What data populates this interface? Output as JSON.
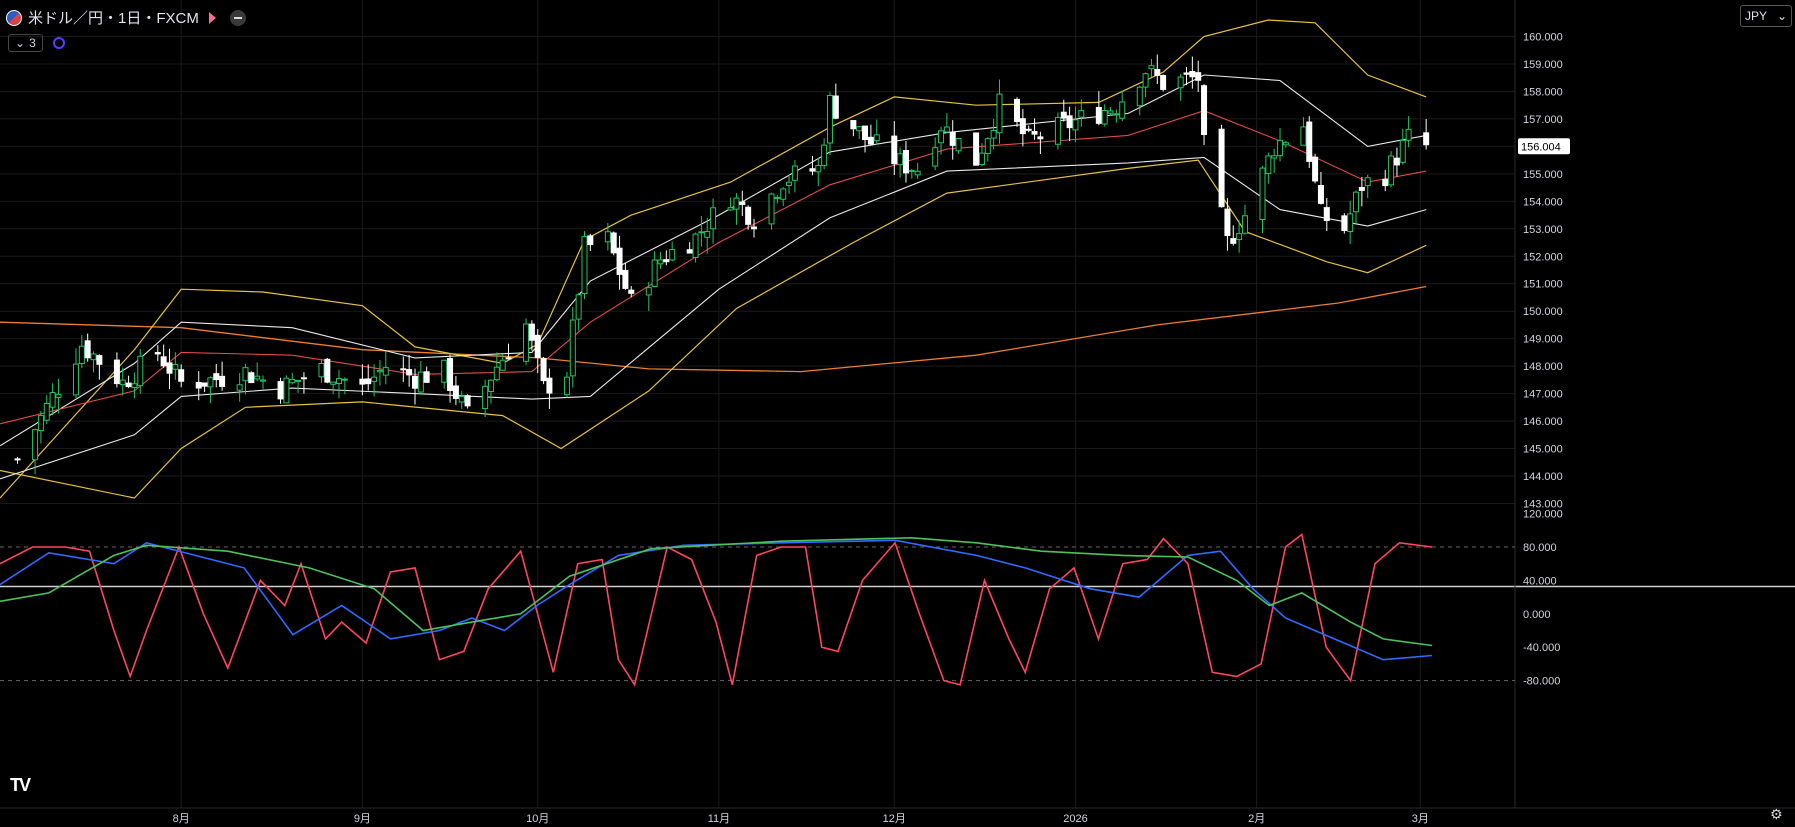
{
  "header": {
    "title": "米ドル／円・1日・FXCM",
    "indicator_count": "3",
    "currency": "JPY",
    "currency_chevron": "⌄"
  },
  "price_axis": {
    "labels": [
      "160.000",
      "159.000",
      "158.000",
      "157.000",
      "156.000",
      "155.000",
      "154.000",
      "153.000",
      "152.000",
      "151.000",
      "150.000",
      "149.000",
      "148.000",
      "147.000",
      "146.000",
      "145.000",
      "144.000",
      "143.000"
    ],
    "current_price": "156.004"
  },
  "osc_axis": {
    "labels": [
      "120.000",
      "80.000",
      "40.000",
      "0.000",
      "-40.000",
      "-80.000"
    ]
  },
  "time_axis": {
    "labels": [
      "8月",
      "9月",
      "10月",
      "11月",
      "12月",
      "2026",
      "2月",
      "3月"
    ]
  },
  "colors": {
    "up": "#22c55e",
    "down": "#ffffff",
    "bb_outer": "#e6c23a",
    "bb_inner": "#e8e8e8",
    "mid": "#e34a4a",
    "ma_long": "#f07d2a",
    "stoch": "#ff4560",
    "osc_blue": "#2f6bff",
    "osc_green": "#4cc35a",
    "grid": "#1a1a1a",
    "axis_text": "#d1d4dc"
  },
  "chart_data": [
    {
      "type": "candlestick",
      "title": "米ドル／円・1日・FXCM",
      "x": [
        "8月",
        "9月",
        "10月",
        "11月",
        "12月",
        "2026",
        "2月",
        "3月"
      ],
      "ylim": [
        143,
        160.5
      ],
      "price_anchors": [
        [
          "2025-07-04",
          144.6
        ],
        [
          "2025-07-09",
          146.5
        ],
        [
          "2025-07-15",
          148.8
        ],
        [
          "2025-07-22",
          147.4
        ],
        [
          "2025-07-28",
          148.5
        ],
        [
          "2025-08-01",
          147.4
        ],
        [
          "2025-08-06",
          147.5
        ],
        [
          "2025-08-12",
          147.8
        ],
        [
          "2025-08-18",
          147.2
        ],
        [
          "2025-08-25",
          147.9
        ],
        [
          "2025-09-01",
          147.2
        ],
        [
          "2025-09-05",
          148.0
        ],
        [
          "2025-09-10",
          147.6
        ],
        [
          "2025-09-15",
          147.8
        ],
        [
          "2025-09-19",
          146.2
        ],
        [
          "2025-09-24",
          148.0
        ],
        [
          "2025-09-29",
          149.5
        ],
        [
          "2025-10-02",
          147.2
        ],
        [
          "2025-10-06",
          147.8
        ],
        [
          "2025-10-09",
          152.3
        ],
        [
          "2025-10-13",
          152.6
        ],
        [
          "2025-10-17",
          150.3
        ],
        [
          "2025-10-22",
          151.9
        ],
        [
          "2025-10-28",
          152.7
        ],
        [
          "2025-11-03",
          154.2
        ],
        [
          "2025-11-07",
          153.4
        ],
        [
          "2025-11-12",
          154.8
        ],
        [
          "2025-11-18",
          155.2
        ],
        [
          "2025-11-20",
          157.6
        ],
        [
          "2025-11-26",
          156.3
        ],
        [
          "2025-12-02",
          155.4
        ],
        [
          "2025-12-05",
          155.2
        ],
        [
          "2025-12-09",
          156.8
        ],
        [
          "2025-12-15",
          155.5
        ],
        [
          "2025-12-19",
          157.5
        ],
        [
          "2025-12-24",
          156.2
        ],
        [
          "2026-01-02",
          157.0
        ],
        [
          "2026-01-08",
          157.5
        ],
        [
          "2026-01-13",
          158.8
        ],
        [
          "2026-01-16",
          158.3
        ],
        [
          "2026-01-22",
          158.5
        ],
        [
          "2026-01-23",
          156.0
        ],
        [
          "2026-01-27",
          152.5
        ],
        [
          "2026-01-30",
          153.5
        ],
        [
          "2026-02-04",
          156.0
        ],
        [
          "2026-02-09",
          156.8
        ],
        [
          "2026-02-12",
          153.5
        ],
        [
          "2026-02-16",
          153.0
        ],
        [
          "2026-02-19",
          154.6
        ],
        [
          "2026-02-23",
          155.0
        ],
        [
          "2026-02-27",
          156.3
        ],
        [
          "2026-03-02",
          156.0
        ]
      ],
      "bollinger_upper": [
        [
          "2025-07-01",
          143.2
        ],
        [
          "2025-07-24",
          148.6
        ],
        [
          "2025-08-01",
          150.8
        ],
        [
          "2025-08-15",
          150.7
        ],
        [
          "2025-09-01",
          150.2
        ],
        [
          "2025-09-10",
          148.7
        ],
        [
          "2025-09-25",
          148.1
        ],
        [
          "2025-10-01",
          148.8
        ],
        [
          "2025-10-09",
          152.6
        ],
        [
          "2025-10-17",
          153.5
        ],
        [
          "2025-11-03",
          154.7
        ],
        [
          "2025-11-20",
          156.7
        ],
        [
          "2025-12-01",
          157.8
        ],
        [
          "2025-12-15",
          157.5
        ],
        [
          "2026-01-05",
          157.6
        ],
        [
          "2026-01-16",
          158.7
        ],
        [
          "2026-01-23",
          160.0
        ],
        [
          "2026-02-03",
          160.6
        ],
        [
          "2026-02-11",
          160.5
        ],
        [
          "2026-02-20",
          158.6
        ],
        [
          "2026-03-02",
          157.8
        ]
      ],
      "bollinger_lower": [
        [
          "2025-07-01",
          144.2
        ],
        [
          "2025-07-24",
          143.2
        ],
        [
          "2025-08-01",
          145.0
        ],
        [
          "2025-08-12",
          146.5
        ],
        [
          "2025-09-01",
          146.7
        ],
        [
          "2025-09-25",
          146.2
        ],
        [
          "2025-10-05",
          145.0
        ],
        [
          "2025-10-20",
          147.1
        ],
        [
          "2025-11-04",
          150.1
        ],
        [
          "2025-11-24",
          152.5
        ],
        [
          "2025-12-10",
          154.3
        ],
        [
          "2026-01-10",
          155.2
        ],
        [
          "2026-01-22",
          155.5
        ],
        [
          "2026-01-30",
          152.9
        ],
        [
          "2026-02-13",
          151.8
        ],
        [
          "2026-02-20",
          151.4
        ],
        [
          "2026-03-02",
          152.4
        ]
      ],
      "bollinger_mid": [
        [
          "2025-07-01",
          145.9
        ],
        [
          "2025-07-24",
          147.1
        ],
        [
          "2025-08-01",
          148.5
        ],
        [
          "2025-08-20",
          148.4
        ],
        [
          "2025-09-10",
          147.7
        ],
        [
          "2025-09-30",
          147.8
        ],
        [
          "2025-10-10",
          149.6
        ],
        [
          "2025-11-01",
          152.5
        ],
        [
          "2025-11-20",
          154.6
        ],
        [
          "2025-12-10",
          155.9
        ],
        [
          "2026-01-10",
          156.4
        ],
        [
          "2026-01-23",
          157.3
        ],
        [
          "2026-02-05",
          156.2
        ],
        [
          "2026-02-20",
          154.7
        ],
        [
          "2026-03-02",
          155.1
        ]
      ],
      "inner_upper": [
        [
          "2025-07-01",
          145.1
        ],
        [
          "2025-07-24",
          148.1
        ],
        [
          "2025-08-01",
          149.6
        ],
        [
          "2025-08-20",
          149.4
        ],
        [
          "2025-09-10",
          148.3
        ],
        [
          "2025-09-30",
          148.5
        ],
        [
          "2025-10-10",
          151.1
        ],
        [
          "2025-11-01",
          153.5
        ],
        [
          "2025-11-20",
          155.8
        ],
        [
          "2025-12-10",
          156.5
        ],
        [
          "2026-01-10",
          157.2
        ],
        [
          "2026-01-23",
          158.6
        ],
        [
          "2026-02-05",
          158.4
        ],
        [
          "2026-02-20",
          156.0
        ],
        [
          "2026-03-02",
          156.4
        ]
      ],
      "inner_lower": [
        [
          "2025-07-01",
          143.9
        ],
        [
          "2025-07-24",
          145.5
        ],
        [
          "2025-08-01",
          146.9
        ],
        [
          "2025-08-20",
          147.2
        ],
        [
          "2025-09-10",
          147.0
        ],
        [
          "2025-09-30",
          146.8
        ],
        [
          "2025-10-10",
          146.9
        ],
        [
          "2025-11-01",
          150.8
        ],
        [
          "2025-11-20",
          153.4
        ],
        [
          "2025-12-10",
          155.1
        ],
        [
          "2026-01-10",
          155.4
        ],
        [
          "2026-01-23",
          155.6
        ],
        [
          "2026-02-05",
          153.7
        ],
        [
          "2026-02-20",
          153.1
        ],
        [
          "2026-03-02",
          153.7
        ]
      ],
      "ma_long": [
        [
          "2025-07-01",
          149.6
        ],
        [
          "2025-08-01",
          149.4
        ],
        [
          "2025-09-01",
          148.6
        ],
        [
          "2025-10-01",
          148.3
        ],
        [
          "2025-10-20",
          147.9
        ],
        [
          "2025-11-15",
          147.8
        ],
        [
          "2025-12-15",
          148.4
        ],
        [
          "2026-01-15",
          149.5
        ],
        [
          "2026-02-15",
          150.3
        ],
        [
          "2026-03-02",
          150.9
        ]
      ]
    },
    {
      "type": "line",
      "ylim": [
        -90,
        120
      ],
      "series": [
        {
          "values": [
            [
              0,
              60
            ],
            [
              4,
              80
            ],
            [
              8,
              80
            ],
            [
              11,
              75
            ],
            [
              14,
              -20
            ],
            [
              16,
              -75
            ],
            [
              18,
              -20
            ],
            [
              22,
              80
            ],
            [
              25,
              0
            ],
            [
              28,
              -65
            ],
            [
              32,
              40
            ],
            [
              35,
              10
            ],
            [
              37,
              60
            ],
            [
              40,
              -30
            ],
            [
              42,
              -10
            ],
            [
              45,
              -35
            ],
            [
              48,
              50
            ],
            [
              51,
              55
            ],
            [
              54,
              -55
            ],
            [
              57,
              -45
            ],
            [
              60,
              30
            ],
            [
              64,
              75
            ],
            [
              68,
              -70
            ],
            [
              71,
              60
            ],
            [
              74,
              65
            ],
            [
              76,
              -55
            ],
            [
              78,
              -85
            ],
            [
              82,
              80
            ],
            [
              85,
              65
            ],
            [
              88,
              -10
            ],
            [
              90,
              -85
            ],
            [
              93,
              70
            ],
            [
              96,
              80
            ],
            [
              99,
              80
            ],
            [
              101,
              -40
            ],
            [
              103,
              -45
            ],
            [
              106,
              40
            ],
            [
              110,
              85
            ],
            [
              113,
              0
            ],
            [
              116,
              -80
            ],
            [
              118,
              -85
            ],
            [
              121,
              40
            ],
            [
              124,
              -30
            ],
            [
              126,
              -70
            ],
            [
              129,
              30
            ],
            [
              132,
              55
            ],
            [
              135,
              -30
            ],
            [
              138,
              60
            ],
            [
              141,
              65
            ],
            [
              143,
              90
            ],
            [
              146,
              60
            ],
            [
              149,
              -70
            ],
            [
              152,
              -75
            ],
            [
              155,
              -60
            ],
            [
              158,
              80
            ],
            [
              160,
              95
            ],
            [
              163,
              -40
            ],
            [
              166,
              -80
            ],
            [
              169,
              60
            ],
            [
              172,
              85
            ],
            [
              176,
              80
            ]
          ]
        },
        {
          "values": [
            [
              0,
              35
            ],
            [
              6,
              73
            ],
            [
              14,
              60
            ],
            [
              18,
              85
            ],
            [
              24,
              70
            ],
            [
              30,
              55
            ],
            [
              36,
              -25
            ],
            [
              42,
              10
            ],
            [
              48,
              -30
            ],
            [
              54,
              -20
            ],
            [
              58,
              -5
            ],
            [
              62,
              -20
            ],
            [
              66,
              10
            ],
            [
              70,
              35
            ],
            [
              76,
              70
            ],
            [
              84,
              82
            ],
            [
              96,
              85
            ],
            [
              110,
              88
            ],
            [
              120,
              70
            ],
            [
              126,
              55
            ],
            [
              134,
              30
            ],
            [
              140,
              20
            ],
            [
              146,
              70
            ],
            [
              150,
              75
            ],
            [
              154,
              30
            ],
            [
              158,
              -5
            ],
            [
              164,
              -30
            ],
            [
              170,
              -55
            ],
            [
              176,
              -50
            ]
          ]
        },
        {
          "values": [
            [
              0,
              15
            ],
            [
              6,
              25
            ],
            [
              14,
              70
            ],
            [
              18,
              82
            ],
            [
              28,
              75
            ],
            [
              38,
              55
            ],
            [
              46,
              30
            ],
            [
              52,
              -20
            ],
            [
              58,
              -10
            ],
            [
              64,
              0
            ],
            [
              70,
              45
            ],
            [
              80,
              78
            ],
            [
              96,
              87
            ],
            [
              112,
              91
            ],
            [
              120,
              85
            ],
            [
              128,
              75
            ],
            [
              138,
              70
            ],
            [
              146,
              68
            ],
            [
              152,
              40
            ],
            [
              156,
              10
            ],
            [
              160,
              25
            ],
            [
              166,
              -10
            ],
            [
              170,
              -30
            ],
            [
              176,
              -38
            ]
          ]
        }
      ]
    }
  ]
}
